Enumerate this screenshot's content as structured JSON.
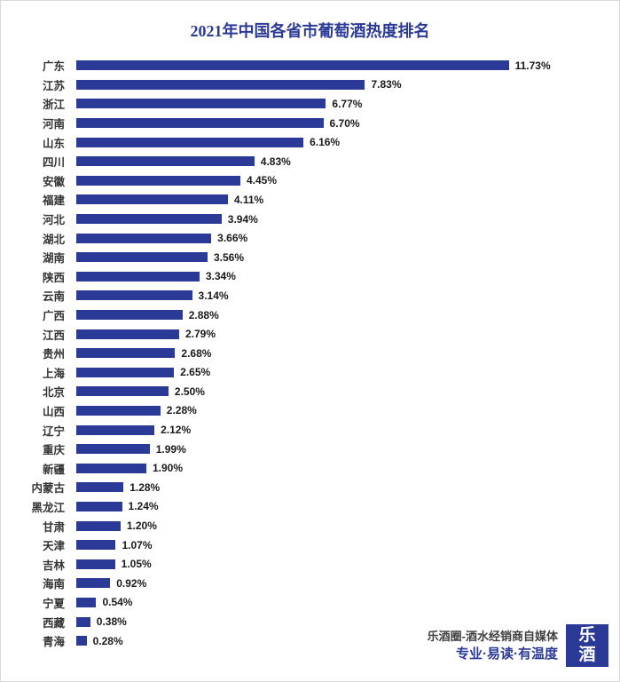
{
  "chart_data": {
    "type": "bar",
    "orientation": "horizontal",
    "title": "2021年中国各省市葡萄酒热度排名",
    "categories": [
      "广东",
      "江苏",
      "浙江",
      "河南",
      "山东",
      "四川",
      "安徽",
      "福建",
      "河北",
      "湖北",
      "湖南",
      "陕西",
      "云南",
      "广西",
      "江西",
      "贵州",
      "上海",
      "北京",
      "山西",
      "辽宁",
      "重庆",
      "新疆",
      "内蒙古",
      "黑龙江",
      "甘肃",
      "天津",
      "吉林",
      "海南",
      "宁夏",
      "西藏",
      "青海"
    ],
    "values": [
      11.73,
      7.83,
      6.77,
      6.7,
      6.16,
      4.83,
      4.45,
      4.11,
      3.94,
      3.66,
      3.56,
      3.34,
      3.14,
      2.88,
      2.79,
      2.68,
      2.65,
      2.5,
      2.28,
      2.12,
      1.99,
      1.9,
      1.28,
      1.24,
      1.2,
      1.07,
      1.05,
      0.92,
      0.54,
      0.38,
      0.28
    ],
    "value_labels": [
      "11.73%",
      "7.83%",
      "6.77%",
      "6.70%",
      "6.16%",
      "4.83%",
      "4.45%",
      "4.11%",
      "3.94%",
      "3.66%",
      "3.56%",
      "3.34%",
      "3.14%",
      "2.88%",
      "2.79%",
      "2.68%",
      "2.65%",
      "2.50%",
      "2.28%",
      "2.12%",
      "1.99%",
      "1.90%",
      "1.28%",
      "1.24%",
      "1.20%",
      "1.07%",
      "1.05%",
      "0.92%",
      "0.54%",
      "0.38%",
      "0.28%"
    ],
    "xlim": [
      0,
      12
    ],
    "grid": false,
    "legend": false,
    "bar_color": "#2b3a97"
  },
  "footer": {
    "line1": "乐酒圈-酒水经销商自媒体",
    "line2": "专业·易读·有温度",
    "logo_char_top": "乐",
    "logo_char_bottom": "酒"
  },
  "colors": {
    "bar": "#2b3a97",
    "title": "#2b3a97",
    "tagline": "#2b3a97",
    "logo_bg": "#2b3a97"
  }
}
